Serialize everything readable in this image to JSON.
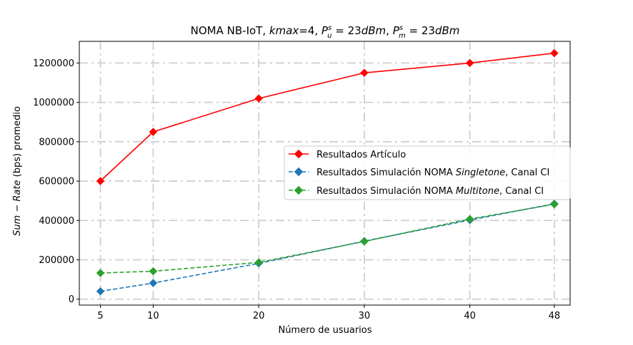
{
  "chart_data": {
    "type": "line",
    "title": {
      "prefix": "NOMA NB-IoT, ",
      "kmax_var": "kmax",
      "kmax_eq": "=4, ",
      "pu_base": "P",
      "pu_sup": "s",
      "pu_sub": "u",
      "pu_eq": " = 23",
      "pu_unit": "dBm",
      "sep": ", ",
      "pm_base": "P",
      "pm_sup": "s",
      "pm_sub": "m",
      "pm_eq": " = 23",
      "pm_unit": "dBm"
    },
    "xlabel": "Número de usuarios",
    "ylabel": {
      "var1": "Sum",
      "dash": " − ",
      "var2": "Rate",
      "rest": " (bps) promedio"
    },
    "x_ticks": [
      5,
      10,
      20,
      30,
      40,
      48
    ],
    "y_ticks": [
      0,
      200000,
      400000,
      600000,
      800000,
      1000000,
      1200000
    ],
    "xlim": [
      3,
      49.5
    ],
    "ylim": [
      -30000,
      1310000
    ],
    "grid": true,
    "legend_position": "center-right",
    "series": [
      {
        "name_plain": "Resultados Artículo",
        "name_pre": "Resultados Artículo",
        "name_it": "",
        "name_post": "",
        "color": "#ff0000",
        "dash": "solid",
        "x": [
          5,
          10,
          20,
          30,
          40,
          48
        ],
        "y": [
          600000,
          850000,
          1020000,
          1150000,
          1200000,
          1250000
        ]
      },
      {
        "name_pre": "Resultados Simulación NOMA ",
        "name_it": "Singletone",
        "name_post": ", Canal CI",
        "color": "#1f77b4",
        "dash": "dashed",
        "x": [
          5,
          10,
          20,
          30,
          40,
          48
        ],
        "y": [
          40000,
          82000,
          182000,
          295000,
          402000,
          485000
        ]
      },
      {
        "name_pre": "Resultados Simulación NOMA ",
        "name_it": "Multitone",
        "name_post": ", Canal CI",
        "color": "#2ca02c",
        "dash": "dashed",
        "x": [
          5,
          10,
          20,
          30,
          40,
          48
        ],
        "y": [
          133000,
          142000,
          187000,
          293000,
          407000,
          482000
        ]
      }
    ]
  }
}
